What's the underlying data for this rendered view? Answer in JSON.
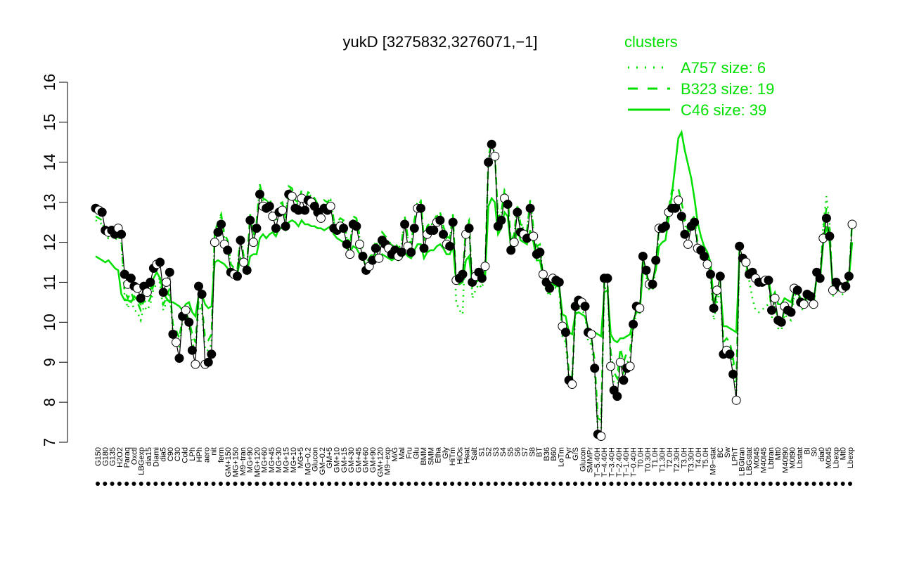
{
  "chart_data": {
    "type": "line",
    "title": "yukD [3275832,3276071,−1]",
    "xlabel": "",
    "ylabel": "",
    "ylim": [
      7,
      16
    ],
    "yticks": [
      7,
      8,
      9,
      10,
      11,
      12,
      13,
      14,
      15,
      16
    ],
    "grid": false,
    "legend": {
      "title": "clusters",
      "placement": "top-right",
      "entries": [
        {
          "label": "A757 size: 6",
          "style": "dotted"
        },
        {
          "label": "B323 size: 19",
          "style": "dashed"
        },
        {
          "label": "C46 size: 39",
          "style": "solid"
        }
      ]
    },
    "colors": {
      "cluster": "#00e000",
      "points": "#000000",
      "text": "#000000"
    },
    "tick_labels": [
      "G150",
      "G180",
      "G135",
      "H2O2",
      "Paraq",
      "Oxctl",
      "LBGexp",
      "dia15",
      "Diami",
      "dia5",
      "C90",
      "C30",
      "Cold",
      "LPh",
      "HPh",
      "aero",
      "nit",
      "ferm",
      "GM+150",
      "MG+150",
      "M9−tran",
      "MG+90",
      "MG+120",
      "MG+60",
      "MG+45",
      "MG+30",
      "MG+15",
      "MG+10",
      "MG+5",
      "MG−0.2",
      "Glucon",
      "GM−0.2",
      "GM+5",
      "GM+10",
      "GM+15",
      "GM+30",
      "GM+45",
      "GM+60",
      "GM+90",
      "GM+120",
      "M9−exp",
      "M/G",
      "Mal",
      "Fru",
      "Glu",
      "BMM",
      "SMM",
      "Etha",
      "Gly",
      "HiTm",
      "HiOs",
      "Heat",
      "Salt",
      "S1",
      "S2",
      "S3",
      "S4",
      "S5",
      "S6",
      "S7",
      "S8",
      "BT",
      "B36",
      "B60",
      "LoTm",
      "Pyr",
      "G/S",
      "Glucon",
      "SMMPr",
      "T−5.40H",
      "T−4.40H",
      "T−3.40H",
      "T−2.40H",
      "T−1.40H",
      "T−0.40H",
      "T0.0H",
      "T0.30H",
      "T1.0H",
      "T1.30H",
      "T2.0H",
      "T2.30H",
      "T3.0H",
      "T3.30H",
      "T4.0H",
      "T5.0H",
      "M9−stat",
      "BC",
      "Sw",
      "LPhT",
      "LBGtran",
      "LBGstat",
      "M0t45",
      "M40t45",
      "Lbtran",
      "Mt0",
      "M40t90",
      "M0t90",
      "Lbstat",
      "BI",
      "S0",
      "dia0",
      "M0t45",
      "Lbexp",
      "Mt0",
      "Lbexp"
    ],
    "points": [
      12.85,
      12.8,
      12.75,
      12.3,
      12.25,
      12.3,
      12.2,
      12.35,
      12.2,
      11.2,
      10.95,
      11.1,
      10.9,
      10.85,
      10.6,
      10.9,
      10.75,
      11.0,
      11.35,
      11.45,
      11.5,
      10.75,
      11.0,
      11.25,
      9.7,
      9.5,
      9.1,
      10.15,
      10.3,
      10.0,
      9.3,
      8.95,
      10.9,
      10.7,
      8.95,
      9.0,
      9.2,
      12.0,
      12.25,
      12.45,
      11.95,
      11.8,
      11.25,
      11.2,
      11.15,
      12.05,
      11.5,
      11.3,
      12.55,
      12.0,
      12.35,
      13.2,
      12.9,
      12.85,
      12.9,
      12.65,
      12.35,
      12.75,
      12.8,
      12.4,
      13.2,
      13.15,
      12.85,
      12.8,
      13.1,
      12.8,
      13.05,
      13.0,
      12.9,
      12.75,
      12.6,
      12.85,
      12.8,
      12.9,
      12.35,
      12.3,
      12.4,
      12.35,
      11.95,
      11.7,
      12.45,
      12.4,
      11.95,
      11.65,
      11.3,
      11.4,
      11.55,
      11.85,
      11.6,
      12.05,
      11.95,
      11.85,
      11.7,
      11.8,
      11.65,
      11.75,
      12.45,
      11.9,
      11.75,
      12.35,
      12.85,
      12.85,
      11.85,
      12.2,
      12.3,
      12.3,
      12.5,
      12.55,
      12.2,
      11.95,
      11.9,
      12.5,
      11.05,
      11.1,
      11.2,
      12.2,
      12.35,
      11.0,
      11.15,
      11.25,
      11.1,
      11.4,
      14.0,
      14.45,
      14.15,
      12.4,
      12.55,
      13.1,
      12.95,
      11.8,
      12.0,
      12.75,
      12.25,
      12.2,
      12.1,
      12.85,
      12.15,
      11.7,
      11.75,
      11.2,
      11.0,
      10.85,
      11.1,
      11.05,
      11.0,
      9.9,
      9.75,
      8.55,
      8.45,
      10.4,
      10.55,
      10.5,
      10.4,
      9.75,
      9.7,
      8.85,
      7.2,
      7.15,
      11.1,
      11.1,
      8.9,
      8.3,
      8.15,
      9.0,
      8.55,
      8.85,
      8.9,
      9.95,
      10.4,
      10.35,
      11.65,
      11.3,
      10.95,
      10.95,
      11.55,
      12.35,
      12.35,
      12.4,
      12.75,
      12.85,
      12.85,
      13.05,
      12.65,
      12.2,
      11.95,
      12.4,
      12.5,
      11.85,
      11.8,
      11.65,
      11.45,
      11.2,
      10.35,
      10.8,
      11.15,
      9.2,
      9.3,
      9.2,
      8.7,
      8.05,
      11.9,
      11.6,
      11.5,
      11.2,
      11.25,
      11.1,
      11.0,
      11.0,
      11.05,
      11.05,
      10.3,
      10.6,
      10.05,
      10.0,
      10.4,
      10.3,
      10.25,
      10.85,
      10.8,
      10.5,
      10.45,
      10.7,
      10.65,
      10.45,
      11.25,
      11.1,
      12.1,
      12.6,
      12.15,
      10.8,
      11.0,
      10.9,
      10.85,
      10.9,
      11.15,
      12.45
    ],
    "c46_line": [
      11.65,
      11.6,
      11.55,
      11.5,
      11.55,
      11.45,
      11.35,
      11.3,
      10.7,
      10.55,
      10.55,
      10.5,
      10.65,
      10.55,
      10.45,
      10.75,
      10.7,
      10.8,
      11.1,
      11.25,
      11.1,
      10.75,
      10.6,
      10.5,
      10.5,
      10.45,
      10.4,
      10.3,
      10.45,
      10.5,
      10.25,
      10.15,
      10.65,
      10.7,
      10.45,
      10.35,
      10.4,
      11.5,
      11.55,
      11.5,
      11.45,
      11.35,
      11.25,
      11.25,
      11.2,
      11.6,
      11.5,
      11.25,
      11.65,
      11.7,
      11.7,
      12.1,
      12.2,
      12.1,
      12.2,
      12.25,
      12.15,
      12.35,
      12.35,
      12.3,
      12.5,
      12.55,
      12.5,
      12.4,
      12.55,
      12.45,
      12.45,
      12.4,
      12.4,
      12.35,
      12.35,
      12.3,
      12.35,
      12.4,
      12.2,
      12.1,
      12.05,
      12.0,
      11.85,
      11.75,
      11.9,
      11.85,
      11.7,
      11.6,
      11.4,
      11.45,
      11.55,
      11.7,
      11.6,
      11.7,
      11.65,
      11.6,
      11.55,
      11.6,
      11.55,
      11.6,
      11.75,
      11.65,
      11.6,
      11.8,
      11.95,
      11.95,
      11.6,
      11.75,
      11.8,
      11.8,
      11.9,
      11.95,
      11.85,
      11.7,
      11.7,
      11.9,
      11.0,
      10.95,
      11.0,
      11.55,
      11.65,
      10.9,
      11.0,
      11.05,
      11.0,
      11.15,
      12.9,
      13.1,
      13.0,
      12.2,
      12.35,
      12.75,
      12.65,
      11.85,
      11.9,
      12.35,
      12.05,
      12.0,
      11.95,
      12.3,
      12.0,
      11.55,
      11.55,
      11.1,
      11.0,
      10.9,
      10.95,
      10.9,
      10.9,
      10.2,
      10.15,
      9.75,
      9.7,
      10.2,
      10.25,
      10.2,
      10.15,
      9.85,
      9.8,
      9.75,
      9.7,
      9.65,
      10.75,
      10.8,
      9.7,
      9.55,
      9.5,
      9.6,
      9.6,
      9.65,
      9.7,
      10.05,
      10.25,
      10.25,
      11.3,
      11.2,
      11.0,
      11.05,
      11.3,
      11.9,
      12.0,
      12.05,
      12.6,
      13.2,
      13.9,
      14.6,
      14.75,
      14.3,
      13.95,
      13.6,
      13.1,
      12.5,
      12.15,
      11.9,
      11.75,
      11.5,
      10.5,
      10.7,
      10.9,
      9.9,
      9.9,
      9.85,
      9.8,
      9.75,
      11.7,
      11.55,
      11.45,
      11.2,
      11.25,
      11.15,
      11.1,
      11.05,
      11.1,
      11.1,
      10.6,
      10.75,
      10.45,
      10.45,
      10.6,
      10.55,
      10.5,
      10.8,
      10.75,
      10.6,
      10.55,
      10.7,
      10.65,
      10.55,
      11.1,
      11.05,
      11.95,
      12.4,
      12.0,
      10.85,
      10.95,
      10.95,
      10.9,
      10.95,
      11.1,
      12.0
    ],
    "b323_line": [
      12.65,
      12.6,
      12.55,
      12.2,
      12.15,
      12.2,
      12.1,
      12.2,
      12.05,
      10.8,
      10.6,
      10.75,
      10.55,
      10.5,
      10.3,
      10.55,
      10.45,
      10.6,
      10.95,
      11.05,
      11.1,
      10.45,
      10.6,
      10.85,
      9.95,
      9.8,
      9.6,
      10.15,
      10.25,
      10.05,
      9.7,
      9.5,
      10.55,
      10.45,
      9.6,
      9.55,
      9.7,
      12.25,
      12.5,
      12.7,
      12.2,
      12.05,
      11.45,
      11.35,
      11.3,
      12.2,
      11.65,
      11.45,
      12.7,
      12.15,
      12.5,
      13.45,
      13.1,
      13.05,
      13.1,
      12.85,
      12.55,
      12.95,
      13.0,
      12.6,
      13.4,
      13.35,
      13.05,
      13.0,
      13.3,
      13.0,
      13.25,
      13.2,
      13.1,
      12.95,
      12.8,
      13.05,
      13.0,
      13.1,
      12.55,
      12.5,
      12.6,
      12.55,
      12.15,
      11.9,
      12.65,
      12.6,
      12.15,
      11.85,
      11.5,
      11.6,
      11.75,
      12.05,
      11.8,
      12.25,
      12.15,
      12.05,
      11.9,
      12.0,
      11.85,
      11.95,
      12.65,
      12.1,
      11.95,
      12.55,
      13.05,
      13.05,
      12.05,
      12.4,
      12.5,
      12.5,
      12.7,
      12.75,
      12.4,
      12.15,
      12.1,
      12.7,
      10.95,
      11.0,
      11.1,
      12.4,
      12.55,
      10.9,
      11.05,
      11.15,
      11.0,
      11.3,
      14.1,
      14.55,
      14.25,
      12.6,
      12.75,
      13.3,
      13.15,
      12.0,
      12.2,
      12.95,
      12.45,
      12.4,
      12.3,
      13.05,
      12.35,
      11.9,
      11.95,
      11.1,
      10.9,
      10.75,
      11.0,
      10.95,
      10.9,
      9.8,
      9.65,
      8.75,
      8.65,
      10.3,
      10.45,
      10.4,
      10.3,
      9.65,
      9.6,
      9.05,
      7.6,
      7.55,
      11.0,
      11.0,
      9.25,
      8.75,
      8.6,
      9.35,
      9.0,
      9.25,
      9.3,
      10.0,
      10.35,
      10.3,
      11.6,
      11.25,
      10.9,
      10.9,
      11.5,
      12.35,
      12.35,
      12.45,
      12.8,
      13.3,
      13.3,
      13.35,
      13.0,
      12.6,
      12.3,
      12.55,
      12.65,
      12.0,
      11.95,
      11.8,
      11.6,
      11.3,
      10.25,
      10.7,
      11.05,
      9.5,
      9.6,
      9.5,
      9.1,
      8.5,
      11.85,
      11.55,
      11.45,
      11.15,
      11.2,
      11.05,
      10.95,
      10.95,
      11.0,
      11.0,
      10.25,
      10.55,
      10.0,
      9.95,
      10.35,
      10.25,
      10.2,
      10.8,
      10.75,
      10.45,
      10.4,
      10.65,
      10.6,
      10.4,
      11.25,
      11.1,
      12.3,
      12.85,
      12.35,
      10.75,
      10.95,
      10.85,
      10.8,
      10.85,
      11.1,
      12.55
    ],
    "a757_line": [
      12.55,
      12.5,
      12.45,
      12.15,
      12.1,
      12.15,
      12.05,
      12.15,
      12.0,
      10.65,
      10.35,
      10.6,
      10.3,
      10.25,
      10.05,
      10.4,
      10.3,
      10.45,
      10.85,
      10.95,
      11.0,
      10.3,
      10.5,
      10.75,
      9.75,
      9.6,
      9.35,
      10.05,
      10.15,
      9.9,
      9.5,
      9.25,
      10.4,
      10.3,
      9.3,
      9.3,
      9.45,
      12.15,
      12.45,
      12.65,
      12.1,
      11.95,
      11.35,
      11.25,
      11.2,
      12.15,
      11.6,
      11.35,
      12.65,
      12.1,
      12.45,
      13.4,
      13.05,
      13.0,
      13.05,
      12.8,
      12.5,
      12.9,
      12.95,
      12.55,
      13.35,
      13.3,
      13.0,
      12.95,
      13.25,
      12.95,
      13.2,
      13.15,
      13.05,
      12.9,
      12.75,
      13.0,
      12.95,
      13.05,
      12.5,
      12.45,
      12.55,
      12.5,
      12.1,
      11.85,
      12.6,
      12.55,
      12.1,
      11.8,
      11.45,
      11.55,
      11.7,
      12.0,
      11.75,
      12.2,
      12.1,
      12.0,
      11.85,
      11.95,
      11.8,
      11.9,
      12.6,
      12.05,
      11.9,
      12.5,
      13.0,
      13.0,
      12.0,
      12.35,
      12.45,
      12.45,
      12.65,
      12.7,
      12.35,
      12.1,
      12.05,
      12.65,
      10.5,
      10.3,
      10.2,
      12.35,
      12.5,
      10.6,
      10.8,
      10.95,
      10.85,
      11.2,
      14.05,
      14.5,
      14.2,
      12.55,
      12.7,
      13.25,
      13.1,
      11.95,
      12.15,
      12.9,
      12.4,
      12.35,
      12.25,
      13.0,
      12.3,
      11.85,
      11.9,
      11.0,
      10.8,
      10.65,
      10.9,
      10.85,
      10.8,
      9.65,
      9.5,
      8.6,
      8.5,
      10.2,
      10.35,
      10.3,
      10.2,
      9.5,
      9.45,
      8.8,
      7.3,
      7.25,
      10.85,
      10.85,
      9.0,
      8.45,
      8.3,
      9.1,
      8.75,
      9.0,
      9.05,
      9.85,
      10.25,
      10.2,
      11.5,
      11.15,
      10.8,
      10.8,
      11.4,
      12.3,
      12.3,
      12.35,
      12.7,
      13.1,
      13.05,
      13.0,
      12.75,
      12.45,
      12.2,
      12.45,
      12.55,
      11.8,
      11.75,
      11.6,
      11.4,
      11.15,
      10.05,
      10.5,
      10.85,
      9.3,
      9.4,
      9.3,
      8.9,
      8.2,
      11.75,
      11.45,
      11.35,
      11.05,
      10.6,
      10.3,
      10.25,
      10.3,
      10.4,
      10.45,
      10.1,
      10.4,
      9.85,
      9.8,
      10.2,
      10.1,
      10.05,
      10.7,
      10.65,
      10.35,
      10.3,
      10.55,
      10.5,
      10.3,
      11.2,
      11.05,
      12.4,
      13.15,
      12.45,
      10.65,
      10.85,
      10.75,
      10.7,
      10.75,
      11.05,
      12.5
    ]
  }
}
